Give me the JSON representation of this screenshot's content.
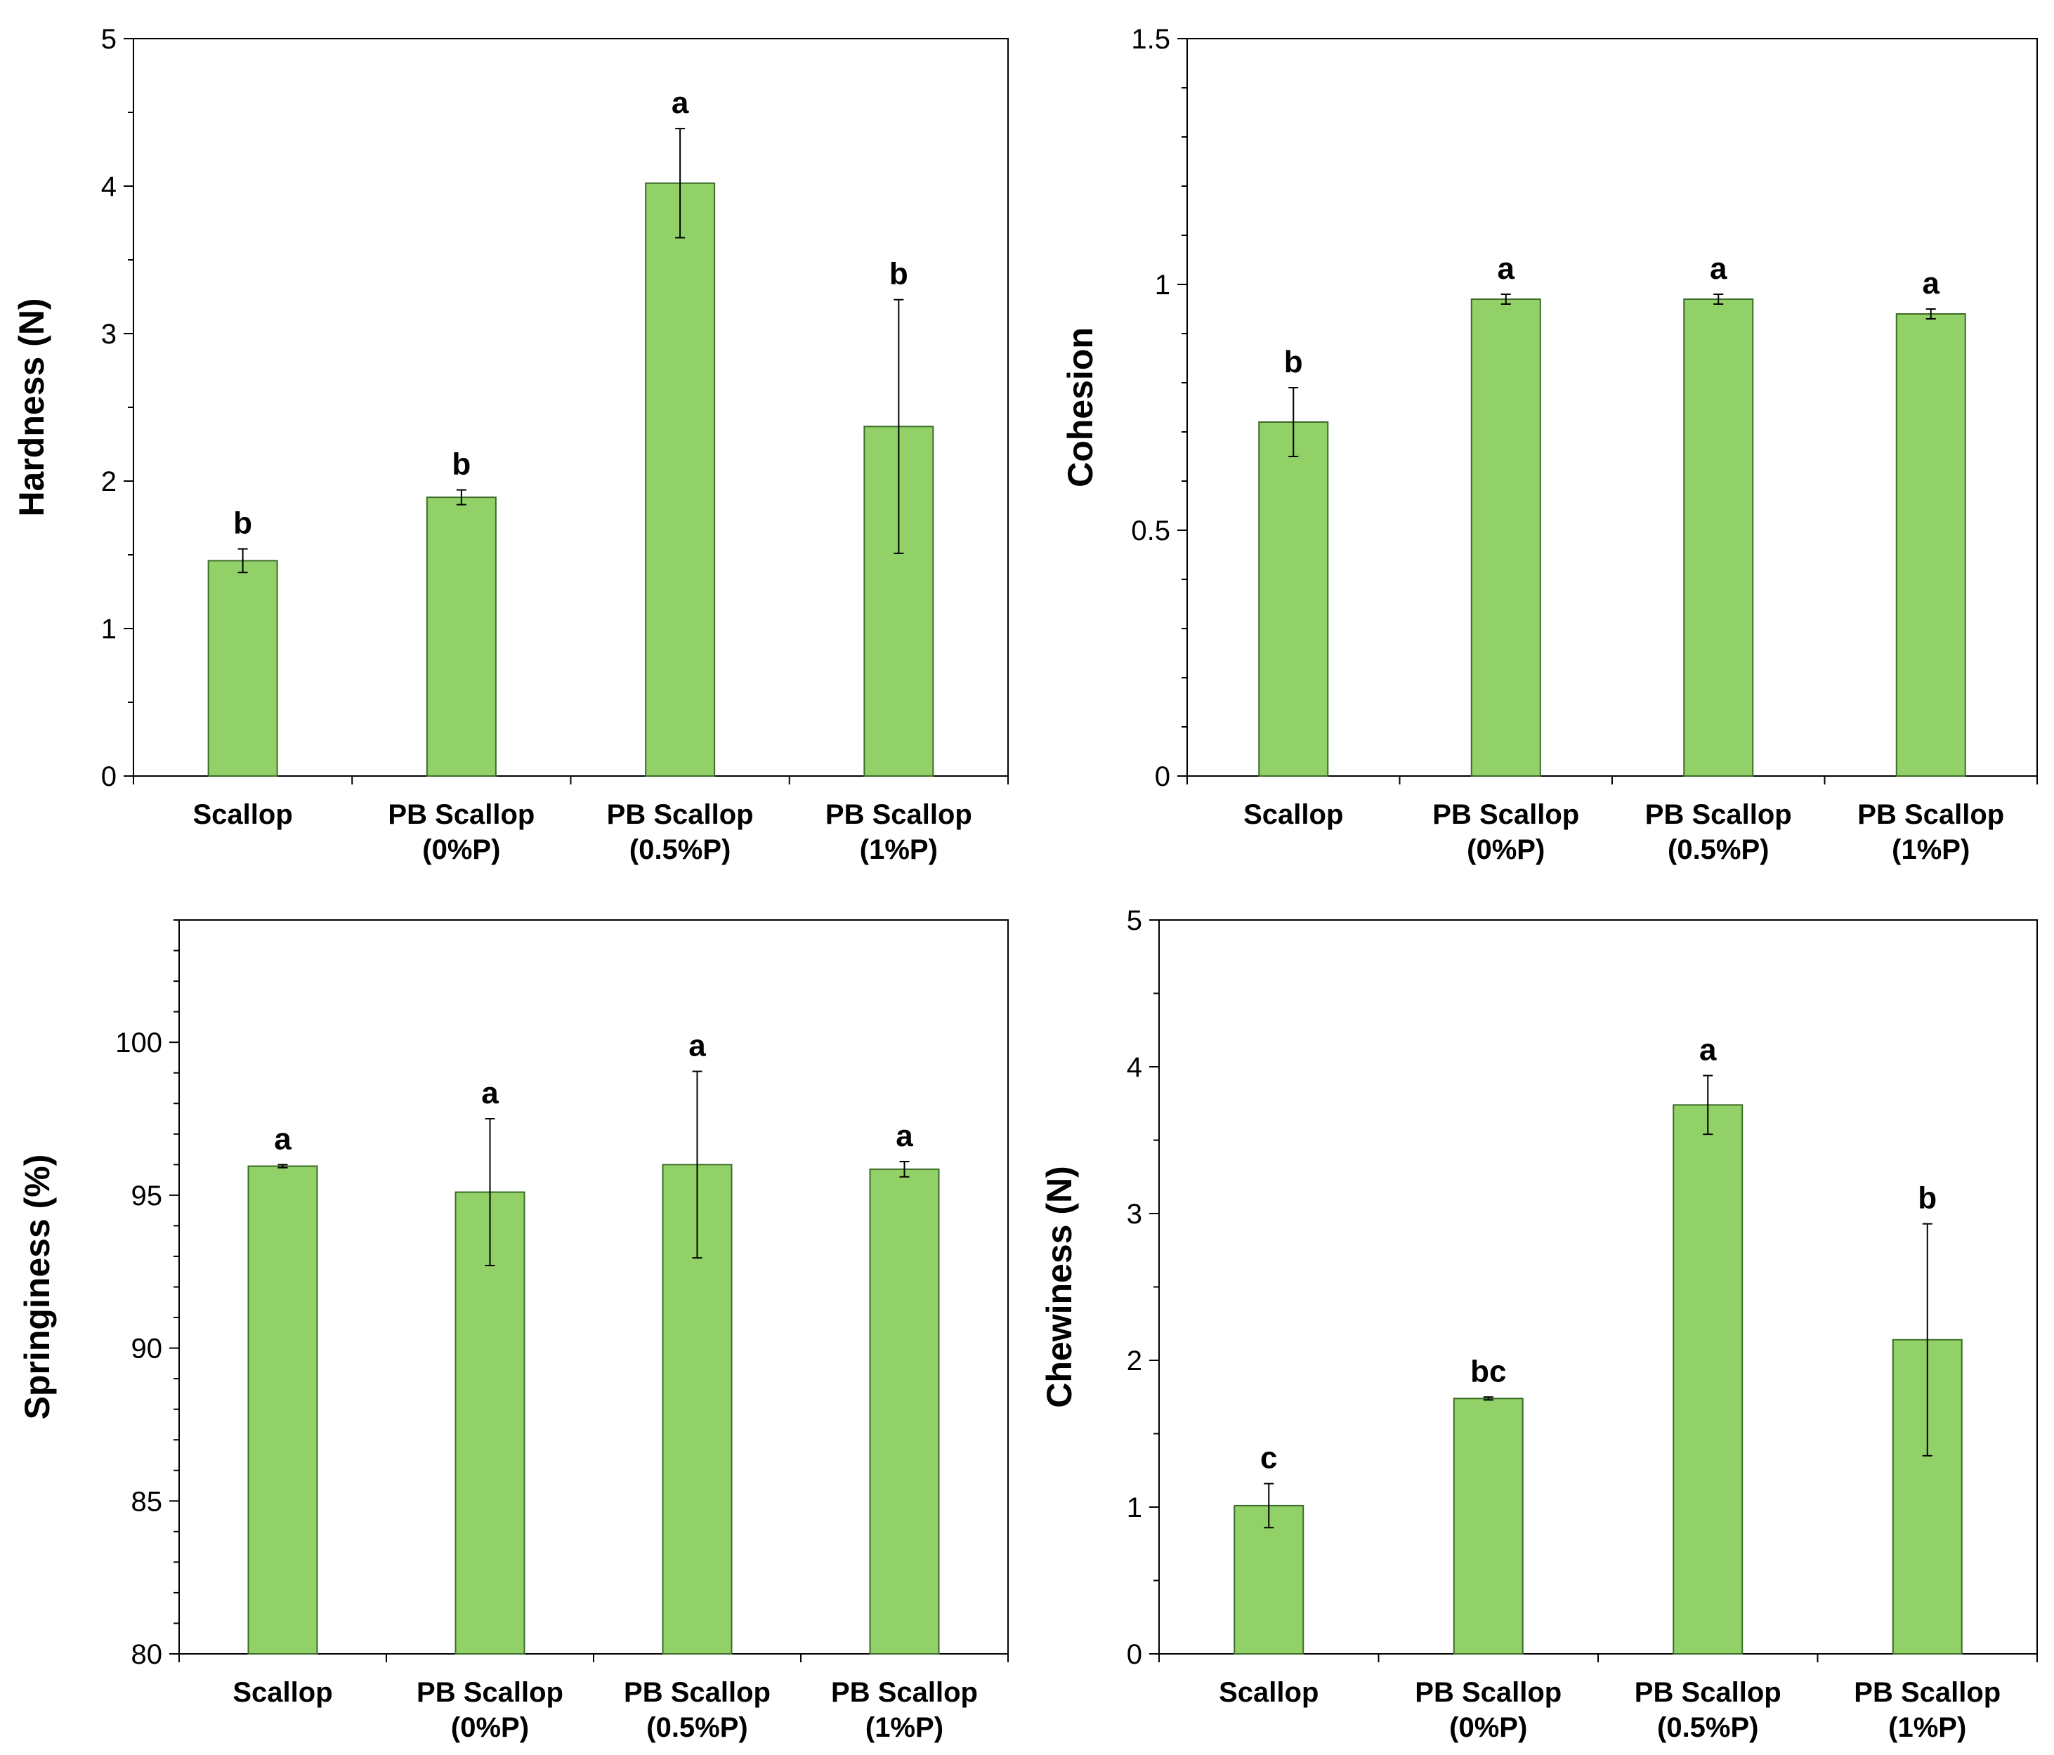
{
  "colors": {
    "bar_fill": "#92d167",
    "bar_stroke": "#3c6b28",
    "axis": "#000000"
  },
  "chart_data": [
    {
      "type": "bar",
      "categories": [
        [
          "Scallop"
        ],
        [
          "PB Scallop",
          "(0%P)"
        ],
        [
          "PB Scallop",
          "(0.5%P)"
        ],
        [
          "PB Scallop",
          "(1%P)"
        ]
      ],
      "values": [
        1.46,
        1.89,
        4.02,
        2.37
      ],
      "errors": [
        0.08,
        0.05,
        0.37,
        0.86
      ],
      "significance": [
        "b",
        "b",
        "a",
        "b"
      ],
      "ylabel": "Hardness (N)",
      "ylim": [
        0,
        5
      ],
      "yticks": [
        0,
        1,
        2,
        3,
        4,
        5
      ],
      "ytick_labels": [
        "0",
        "1",
        "2",
        "3",
        "4",
        "5"
      ],
      "minor_ticks": 1,
      "grid": false
    },
    {
      "type": "bar",
      "categories": [
        [
          "Scallop"
        ],
        [
          "PB Scallop",
          "(0%P)"
        ],
        [
          "PB Scallop",
          "(0.5%P)"
        ],
        [
          "PB Scallop",
          "(1%P)"
        ]
      ],
      "values": [
        0.72,
        0.97,
        0.97,
        0.94
      ],
      "errors": [
        0.07,
        0.01,
        0.01,
        0.01
      ],
      "significance": [
        "b",
        "a",
        "a",
        "a"
      ],
      "ylabel": "Cohesion",
      "ylim": [
        0,
        1.5
      ],
      "yticks": [
        0,
        0.5,
        1,
        1.5
      ],
      "ytick_labels": [
        "0",
        "0.5",
        "1",
        "1.5"
      ],
      "minor_ticks": 4,
      "grid": false
    },
    {
      "type": "bar",
      "categories": [
        [
          "Scallop"
        ],
        [
          "PB Scallop",
          "(0%P)"
        ],
        [
          "PB Scallop",
          "(0.5%P)"
        ],
        [
          "PB Scallop",
          "(1%P)"
        ]
      ],
      "values": [
        95.95,
        95.1,
        96.0,
        95.85
      ],
      "errors": [
        0.05,
        2.4,
        3.05,
        0.25
      ],
      "significance": [
        "a",
        "a",
        "a",
        "a"
      ],
      "ylabel": "Springiness (%)",
      "ylim": [
        80,
        104
      ],
      "yticks": [
        80,
        85,
        90,
        95,
        100
      ],
      "ytick_labels": [
        "80",
        "85",
        "90",
        "95",
        "100"
      ],
      "minor_ticks": 4,
      "grid": false
    },
    {
      "type": "bar",
      "categories": [
        [
          "Scallop"
        ],
        [
          "PB Scallop",
          "(0%P)"
        ],
        [
          "PB Scallop",
          "(0.5%P)"
        ],
        [
          "PB Scallop",
          "(1%P)"
        ]
      ],
      "values": [
        1.01,
        1.74,
        3.74,
        2.14
      ],
      "errors": [
        0.15,
        0.01,
        0.2,
        0.79
      ],
      "significance": [
        "c",
        "bc",
        "a",
        "b"
      ],
      "ylabel": "Chewiness (N)",
      "ylim": [
        0,
        5
      ],
      "yticks": [
        0,
        1,
        2,
        3,
        4,
        5
      ],
      "ytick_labels": [
        "0",
        "1",
        "2",
        "3",
        "4",
        "5"
      ],
      "minor_ticks": 1,
      "grid": false
    }
  ]
}
